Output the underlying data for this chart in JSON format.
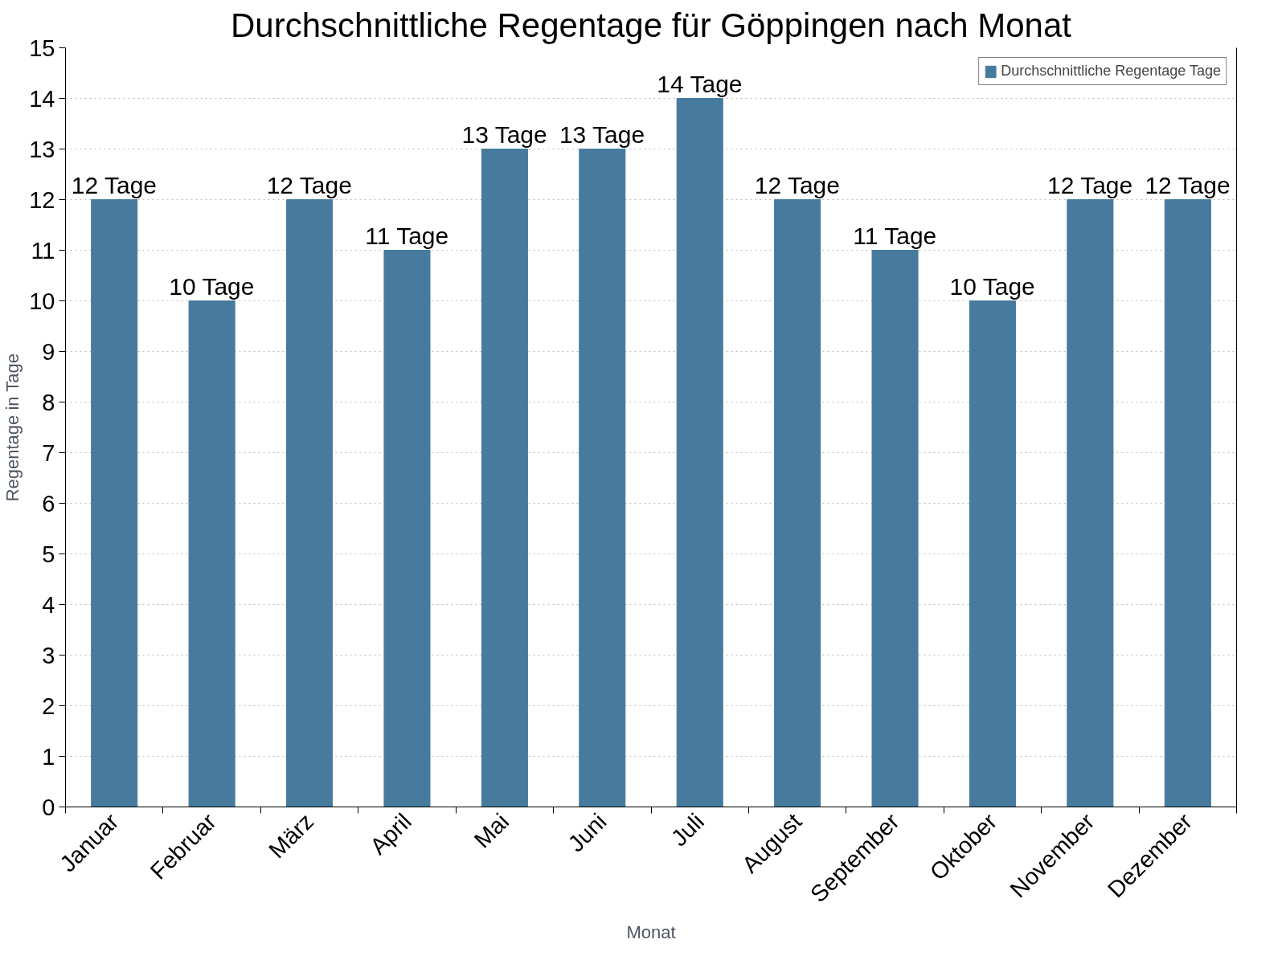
{
  "chart_data": {
    "type": "bar",
    "title": "Durchschnittliche Regentage für Göppingen nach Monat",
    "xlabel": "Monat",
    "ylabel": "Regentage in Tage",
    "categories": [
      "Januar",
      "Februar",
      "März",
      "April",
      "Mai",
      "Juni",
      "Juli",
      "August",
      "September",
      "Oktober",
      "November",
      "Dezember"
    ],
    "series": [
      {
        "name": "Durchschnittliche Regentage Tage",
        "color": "#467b9e",
        "values": [
          12,
          10,
          12,
          11,
          13,
          13,
          14,
          12,
          11,
          10,
          12,
          12
        ],
        "value_labels": [
          "12 Tage",
          "10 Tage",
          "12 Tage",
          "11 Tage",
          "13 Tage",
          "13 Tage",
          "14 Tage",
          "12 Tage",
          "11 Tage",
          "10 Tage",
          "12 Tage",
          "12 Tage"
        ]
      }
    ],
    "ylim": [
      0,
      15
    ],
    "yticks": [
      0,
      1,
      2,
      3,
      4,
      5,
      6,
      7,
      8,
      9,
      10,
      11,
      12,
      13,
      14,
      15
    ],
    "grid": "y",
    "legend": "top right"
  }
}
